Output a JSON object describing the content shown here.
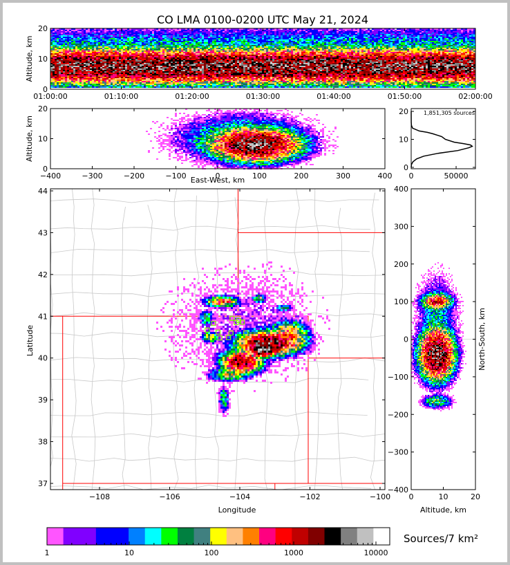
{
  "title": "CO LMA 0100-0200 UTC May 21, 2024",
  "chart_data": [
    {
      "panel": "time-altitude",
      "type": "heatmap",
      "xlabel": "",
      "ylabel": "Altitude, km",
      "xlim_minutes": [
        0,
        60
      ],
      "ylim": [
        0,
        20
      ],
      "xticks": [
        {
          "v": 0,
          "label": "01:00:00"
        },
        {
          "v": 10,
          "label": "01:10:00"
        },
        {
          "v": 20,
          "label": "01:20:00"
        },
        {
          "v": 30,
          "label": "01:30:00"
        },
        {
          "v": 40,
          "label": "01:40:00"
        },
        {
          "v": 50,
          "label": "01:50:00"
        },
        {
          "v": 60,
          "label": "02:00:00"
        }
      ],
      "yticks": [
        {
          "v": 0,
          "label": "0"
        },
        {
          "v": 10,
          "label": "10"
        },
        {
          "v": 20,
          "label": "20"
        }
      ],
      "profile": {
        "peak_altitude_km": 7.5,
        "peak_density": 3000
      }
    },
    {
      "panel": "east-west-altitude",
      "type": "heatmap",
      "xlabel": "East-West, km",
      "ylabel": "Altitude, km",
      "xlim": [
        -400,
        400
      ],
      "ylim": [
        0,
        20
      ],
      "xticks": [
        {
          "v": -400,
          "label": "−400"
        },
        {
          "v": -300,
          "label": "−300"
        },
        {
          "v": -200,
          "label": "−200"
        },
        {
          "v": -100,
          "label": "−100"
        },
        {
          "v": 0,
          "label": "0"
        },
        {
          "v": 100,
          "label": "100"
        },
        {
          "v": 200,
          "label": "200"
        },
        {
          "v": 300,
          "label": "300"
        },
        {
          "v": 400,
          "label": "400"
        }
      ],
      "yticks": [
        {
          "v": 0,
          "label": "0"
        },
        {
          "v": 10,
          "label": "10"
        },
        {
          "v": 20,
          "label": "20"
        }
      ],
      "blobs": [
        {
          "x": 90,
          "alt": 8,
          "sx": 55,
          "sa": 2.8,
          "peak": 3500
        },
        {
          "x": 60,
          "alt": 10,
          "sx": 90,
          "sa": 4.5,
          "peak": 40
        }
      ]
    },
    {
      "panel": "altitude-histogram",
      "type": "line",
      "annotation": "1,851,305 sources",
      "xlim": [
        0,
        71500
      ],
      "ylim": [
        -0.5,
        21
      ],
      "xticks": [
        {
          "v": 0,
          "label": "0"
        },
        {
          "v": 50000,
          "label": "50000"
        }
      ],
      "yticks": [
        {
          "v": 0,
          "label": "0"
        },
        {
          "v": 10,
          "label": "10"
        },
        {
          "v": 20,
          "label": "20"
        }
      ],
      "altitude": [
        0,
        1,
        2,
        3,
        4,
        5,
        6,
        7,
        7.5,
        8,
        8.5,
        9,
        10,
        11,
        12,
        12.5,
        13,
        14,
        15,
        16,
        20
      ],
      "counts": [
        0,
        300,
        2000,
        6000,
        14000,
        30000,
        52000,
        64000,
        68000,
        66000,
        58000,
        48000,
        38000,
        34000,
        24000,
        18000,
        9000,
        1500,
        300,
        50,
        0
      ]
    },
    {
      "panel": "plan-view",
      "type": "heatmap",
      "xlabel": "Longitude",
      "ylabel": "Latitude",
      "xlim": [
        -109.4,
        -99.82
      ],
      "ylim": [
        36.85,
        44.05
      ],
      "xticks": [
        {
          "v": -108,
          "label": "−108"
        },
        {
          "v": -106,
          "label": "−106"
        },
        {
          "v": -104,
          "label": "−104"
        },
        {
          "v": -102,
          "label": "−102"
        },
        {
          "v": -100,
          "label": "−100"
        }
      ],
      "yticks": [
        {
          "v": 37,
          "label": "37"
        },
        {
          "v": 38,
          "label": "38"
        },
        {
          "v": 39,
          "label": "39"
        },
        {
          "v": 40,
          "label": "40"
        },
        {
          "v": 41,
          "label": "41"
        },
        {
          "v": 42,
          "label": "42"
        },
        {
          "v": 43,
          "label": "43"
        },
        {
          "v": 44,
          "label": "44"
        }
      ],
      "blobs": [
        {
          "lon": -103.2,
          "lat": 40.35,
          "slon": 0.45,
          "slat": 0.15,
          "peak": 2500
        },
        {
          "lon": -103.35,
          "lat": 40.2,
          "slon": 0.2,
          "slat": 0.08,
          "peak": 8000
        },
        {
          "lon": -103.95,
          "lat": 39.9,
          "slon": 0.3,
          "slat": 0.14,
          "peak": 2000
        },
        {
          "lon": -102.6,
          "lat": 40.5,
          "slon": 0.3,
          "slat": 0.2,
          "peak": 400
        },
        {
          "lon": -104.5,
          "lat": 41.35,
          "slon": 0.25,
          "slat": 0.07,
          "peak": 400
        },
        {
          "lon": -104.85,
          "lat": 40.5,
          "slon": 0.12,
          "slat": 0.07,
          "peak": 150
        },
        {
          "lon": -103.45,
          "lat": 41.42,
          "slon": 0.1,
          "slat": 0.05,
          "peak": 150
        },
        {
          "lon": -102.75,
          "lat": 41.2,
          "slon": 0.12,
          "slat": 0.04,
          "peak": 60
        },
        {
          "lon": -104.3,
          "lat": 39.6,
          "slon": 0.3,
          "slat": 0.08,
          "peak": 120
        },
        {
          "lon": -104.45,
          "lat": 39.0,
          "slon": 0.08,
          "slat": 0.18,
          "peak": 40
        },
        {
          "lon": -104.95,
          "lat": 40.95,
          "slon": 0.1,
          "slat": 0.1,
          "peak": 60
        },
        {
          "lon": -103.9,
          "lat": 40.8,
          "slon": 1.4,
          "slat": 0.9,
          "peak": 1.2
        }
      ],
      "stations": [
        [
          -104.75,
          40.83
        ],
        [
          -104.22,
          40.95
        ],
        [
          -104.03,
          40.9
        ],
        [
          -103.93,
          40.86
        ],
        [
          -104.57,
          40.48
        ],
        [
          -104.93,
          40.67
        ],
        [
          -104.32,
          40.49
        ],
        [
          -103.83,
          40.6
        ],
        [
          -104.62,
          40.62
        ],
        [
          -104.25,
          40.6
        ],
        [
          -104.1,
          40.85
        ]
      ]
    },
    {
      "panel": "altitude-north-south",
      "type": "heatmap",
      "xlabel": "Altitude, km",
      "ylabel": "North-South, km",
      "xlim": [
        0,
        20
      ],
      "ylim": [
        -400,
        400
      ],
      "xticks": [
        {
          "v": 0,
          "label": "0"
        },
        {
          "v": 10,
          "label": "10"
        },
        {
          "v": 20,
          "label": "20"
        }
      ],
      "yticks": [
        {
          "v": -400,
          "label": "−400"
        },
        {
          "v": -300,
          "label": "−300"
        },
        {
          "v": -200,
          "label": "−200"
        },
        {
          "v": -100,
          "label": "−100"
        },
        {
          "v": 0,
          "label": "0"
        },
        {
          "v": 100,
          "label": "100"
        },
        {
          "v": 200,
          "label": "200"
        },
        {
          "v": 300,
          "label": "300"
        },
        {
          "v": 400,
          "label": "400"
        }
      ],
      "blobs": [
        {
          "alt": 8,
          "ns": -40,
          "sa": 2.8,
          "sn": 35,
          "peak": 3500
        },
        {
          "alt": 8,
          "ns": 100,
          "sa": 2.5,
          "sn": 12,
          "peak": 800
        },
        {
          "alt": 8,
          "ns": -165,
          "sa": 2.5,
          "sn": 10,
          "peak": 60
        },
        {
          "alt": 8,
          "ns": 40,
          "sa": 3.5,
          "sn": 70,
          "peak": 20
        }
      ]
    }
  ],
  "colorbar": {
    "label": "Sources/7 km²",
    "ticks": [
      {
        "v": 0,
        "label": "1"
      },
      {
        "v": 1,
        "label": "10"
      },
      {
        "v": 2,
        "label": "100"
      },
      {
        "v": 3,
        "label": "1000"
      },
      {
        "v": 4,
        "label": "10000"
      }
    ],
    "colors": [
      "#ff55ff",
      "#8000ff",
      "#8000ff",
      "#0000ff",
      "#0000ff",
      "#0080ff",
      "#00ffff",
      "#00ff00",
      "#008040",
      "#408080",
      "#ffff00",
      "#ffc080",
      "#ff8000",
      "#ff0080",
      "#ff0000",
      "#c00000",
      "#800000",
      "#000000",
      "#808080",
      "#c0c0c0",
      "#ffffff"
    ]
  },
  "colors": {
    "state_border": "#ff0000",
    "county_border": "#c8c8c8",
    "station": "#80ff00",
    "hist_line": "#000000"
  }
}
